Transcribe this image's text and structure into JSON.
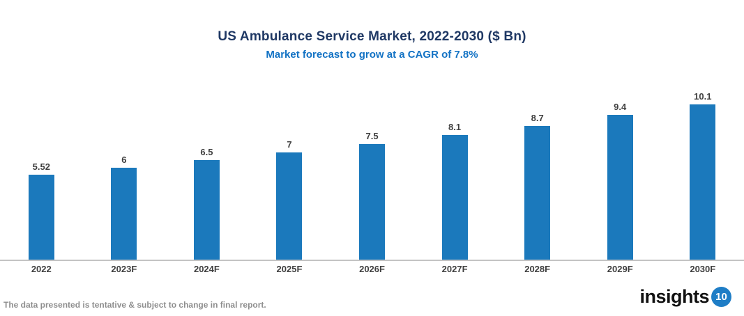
{
  "chart_data": {
    "type": "bar",
    "title": "US Ambulance Service Market, 2022-2030 ($ Bn)",
    "subtitle": "Market forecast to grow at a CAGR of 7.8%",
    "categories": [
      "2022",
      "2023F",
      "2024F",
      "2025F",
      "2026F",
      "2027F",
      "2028F",
      "2029F",
      "2030F"
    ],
    "values": [
      5.52,
      6,
      6.5,
      7,
      7.5,
      8.1,
      8.7,
      9.4,
      10.1
    ],
    "value_labels": [
      "5.52",
      "6",
      "6.5",
      "7",
      "7.5",
      "8.1",
      "8.7",
      "9.4",
      "10.1"
    ],
    "xlabel": "",
    "ylabel": "",
    "ylim": [
      0,
      10.1
    ],
    "grid": false,
    "legend": "none",
    "bar_color": "#1B79BC"
  },
  "footer": {
    "note": "The data presented is tentative & subject to change in final report.",
    "logo_text": "insights",
    "logo_badge": "10"
  },
  "colors": {
    "title": "#1F3864",
    "subtitle": "#1272C4",
    "bar": "#1B79BC",
    "axis_line": "#C3C3C3",
    "data_label": "#3F3F3F",
    "note": "#8E8E8E",
    "logo_badge_bg": "#1E7DC6"
  }
}
